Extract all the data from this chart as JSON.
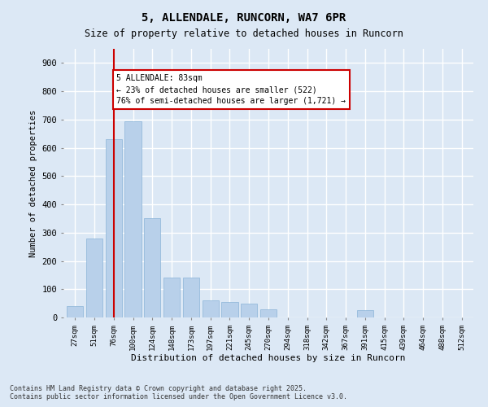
{
  "title_line1": "5, ALLENDALE, RUNCORN, WA7 6PR",
  "title_line2": "Size of property relative to detached houses in Runcorn",
  "xlabel": "Distribution of detached houses by size in Runcorn",
  "ylabel": "Number of detached properties",
  "categories": [
    "27sqm",
    "51sqm",
    "76sqm",
    "100sqm",
    "124sqm",
    "148sqm",
    "173sqm",
    "197sqm",
    "221sqm",
    "245sqm",
    "270sqm",
    "294sqm",
    "318sqm",
    "342sqm",
    "367sqm",
    "391sqm",
    "415sqm",
    "439sqm",
    "464sqm",
    "488sqm",
    "512sqm"
  ],
  "values": [
    40,
    280,
    630,
    695,
    350,
    140,
    140,
    60,
    55,
    50,
    30,
    0,
    0,
    0,
    0,
    25,
    0,
    0,
    0,
    0,
    0
  ],
  "bar_color": "#b8d0ea",
  "bar_edge_color": "#8ab4d8",
  "background_color": "#dce8f5",
  "grid_color": "#ffffff",
  "vline_color": "#cc0000",
  "vline_x_index": 2,
  "annotation_text": "5 ALLENDALE: 83sqm\n← 23% of detached houses are smaller (522)\n76% of semi-detached houses are larger (1,721) →",
  "annotation_box_color": "#ffffff",
  "annotation_box_edge_color": "#cc0000",
  "footer_text": "Contains HM Land Registry data © Crown copyright and database right 2025.\nContains public sector information licensed under the Open Government Licence v3.0.",
  "ylim": [
    0,
    950
  ],
  "yticks": [
    0,
    100,
    200,
    300,
    400,
    500,
    600,
    700,
    800,
    900
  ]
}
